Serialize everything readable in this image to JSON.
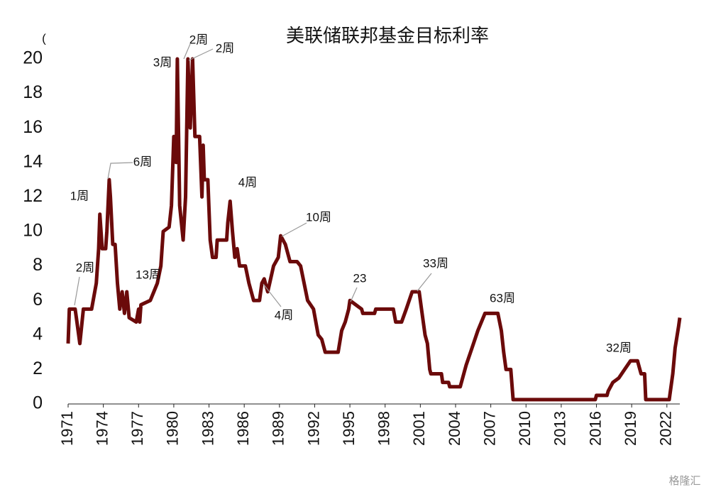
{
  "chart_data": {
    "type": "line",
    "title": "美联储联邦基金目标利率",
    "x": [
      1971.0,
      1971.1,
      1971.6,
      1971.7,
      1972.0,
      1972.3,
      1973.0,
      1973.4,
      1973.6,
      1973.7,
      1973.9,
      1974.2,
      1974.3,
      1974.5,
      1974.6,
      1974.8,
      1975.0,
      1975.2,
      1975.4,
      1975.6,
      1975.8,
      1976.0,
      1976.2,
      1976.8,
      1977.0,
      1977.1,
      1977.2,
      1978.0,
      1978.3,
      1978.6,
      1978.9,
      1979.1,
      1979.6,
      1979.8,
      1980.0,
      1980.2,
      1980.3,
      1980.5,
      1980.8,
      1981.0,
      1981.2,
      1981.4,
      1981.6,
      1981.8,
      1982.2,
      1982.4,
      1982.5,
      1982.6,
      1982.9,
      1983.1,
      1983.3,
      1983.6,
      1983.7,
      1984.5,
      1984.6,
      1984.8,
      1985.0,
      1985.2,
      1985.4,
      1985.6,
      1986.1,
      1986.4,
      1986.8,
      1987.3,
      1987.5,
      1987.7,
      1987.9,
      1988.0,
      1988.5,
      1988.9,
      1989.1,
      1989.5,
      1989.9,
      1990.5,
      1990.8,
      1991.4,
      1991.9,
      1992.3,
      1992.6,
      1992.9,
      1994.0,
      1994.3,
      1994.6,
      1994.9,
      1995.0,
      1995.5,
      1996.0,
      1996.1,
      1997.1,
      1997.2,
      1998.7,
      1998.9,
      1999.4,
      1999.8,
      2000.3,
      2000.9,
      2001.1,
      2001.4,
      2001.6,
      2001.8,
      2001.9,
      2002.8,
      2002.9,
      2003.4,
      2003.5,
      2004.4,
      2004.9,
      2005.4,
      2005.9,
      2006.5,
      2007.6,
      2007.9,
      2008.1,
      2008.3,
      2008.7,
      2008.9,
      2015.9,
      2016.0,
      2016.9,
      2017.0,
      2017.4,
      2017.9,
      2018.4,
      2018.9,
      2019.5,
      2019.8,
      2020.1,
      2020.2,
      2022.2,
      2022.25,
      2022.5,
      2022.7,
      2023.0,
      2023.1
    ],
    "values": [
      3.5,
      5.5,
      5.5,
      5.0,
      3.5,
      5.5,
      5.5,
      7,
      9,
      11,
      9,
      9,
      10,
      13,
      12,
      9.25,
      9.25,
      7,
      5.5,
      6.5,
      5.25,
      6.5,
      5,
      4.75,
      5.5,
      4.75,
      5.75,
      6,
      6.5,
      7,
      8,
      10,
      10.25,
      11.5,
      15.5,
      14,
      20,
      11.5,
      9.5,
      12,
      20,
      16,
      20,
      15.5,
      15.5,
      12,
      15,
      13,
      13,
      9.5,
      8.5,
      8.5,
      9.5,
      9.5,
      10.5,
      11.75,
      10,
      8.5,
      9,
      8,
      8,
      7,
      6,
      6,
      7,
      7.25,
      6.75,
      6.5,
      8,
      8.5,
      9.75,
      9.25,
      8.25,
      8.25,
      8,
      6,
      5.5,
      4,
      3.75,
      3,
      3,
      4.25,
      4.75,
      5.5,
      6,
      5.75,
      5.5,
      5.25,
      5.25,
      5.5,
      5.5,
      4.75,
      4.75,
      5.5,
      6.5,
      6.5,
      5.5,
      4,
      3.5,
      2,
      1.75,
      1.75,
      1.25,
      1.25,
      1.0,
      1.0,
      2.25,
      3.25,
      4.25,
      5.25,
      5.25,
      4.25,
      3.0,
      2.0,
      2.0,
      0.25,
      0.25,
      0.5,
      0.5,
      0.75,
      1.25,
      1.5,
      2.0,
      2.5,
      2.5,
      1.75,
      1.75,
      0.25,
      0.25,
      0.5,
      1.75,
      3.25,
      4.5,
      5.0
    ],
    "color": "#6b0a0a",
    "xlim": [
      1971,
      2023.1
    ],
    "xticks": [
      1971,
      1974,
      1977,
      1980,
      1983,
      1986,
      1989,
      1992,
      1995,
      1998,
      2001,
      2004,
      2007,
      2010,
      2013,
      2016,
      2019,
      2022
    ],
    "ylim": [
      0,
      20
    ],
    "yticks": [
      0,
      2,
      4,
      6,
      8,
      10,
      12,
      14,
      16,
      18,
      20
    ],
    "annotations": [
      "(",
      "2周",
      "2周",
      "3周",
      "6周",
      "1周",
      "4周",
      "10周",
      "2周",
      "13周",
      "23",
      "33周",
      "4周",
      "63周",
      "32周"
    ],
    "watermark": "格隆汇"
  }
}
